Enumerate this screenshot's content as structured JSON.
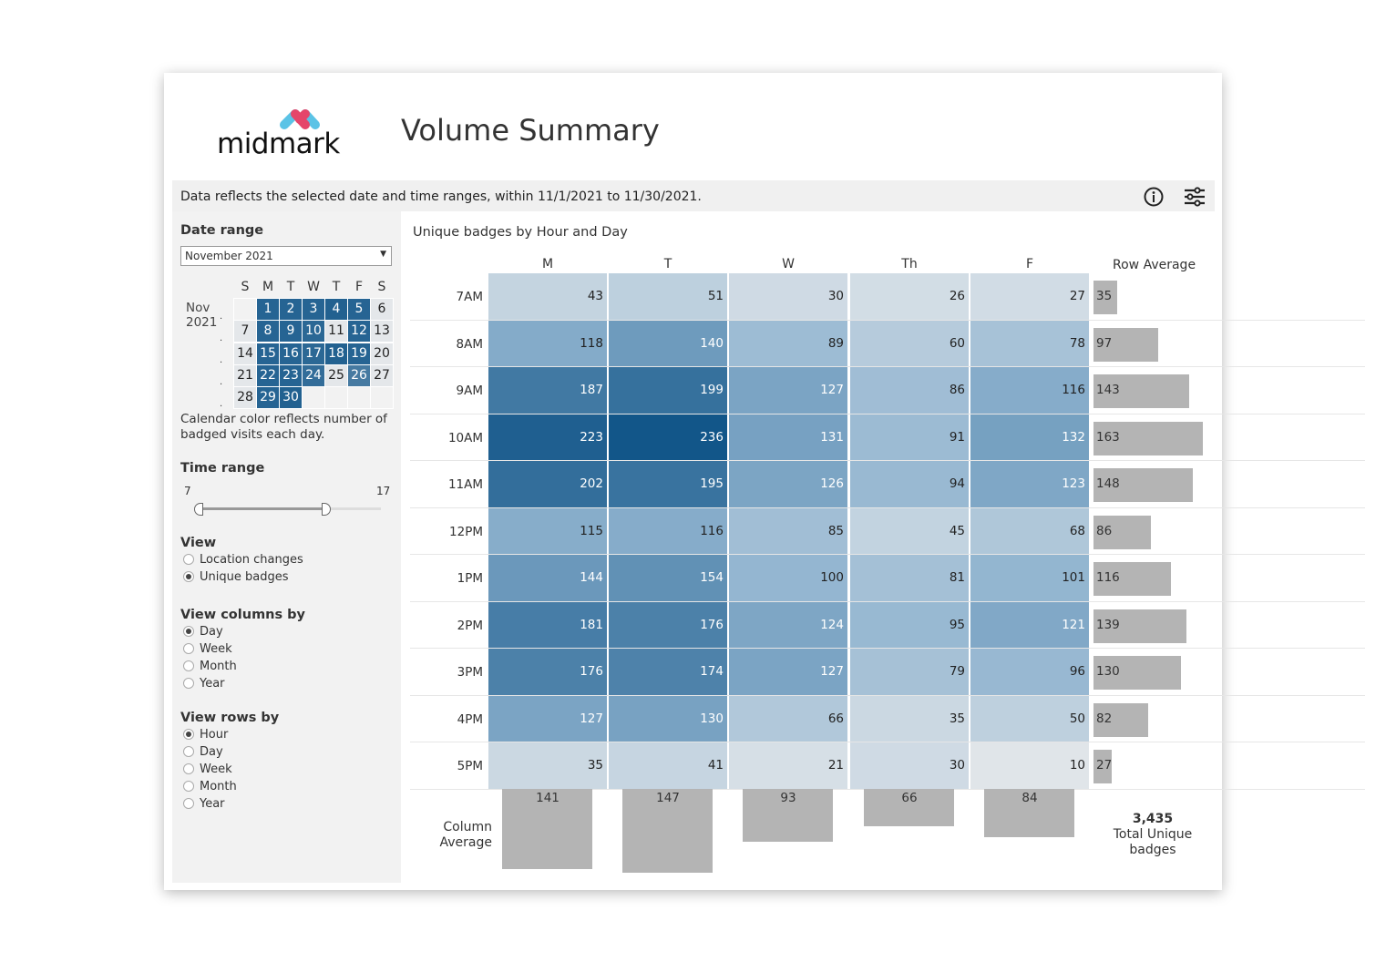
{
  "brand": {
    "logo_text": "midmark"
  },
  "header": {
    "title": "Volume Summary"
  },
  "banner": {
    "text": "Data reflects the selected date and time ranges, within 11/1/2021 to 11/30/2021.",
    "icons": [
      "info-icon",
      "filter-sliders-icon"
    ]
  },
  "sidebar": {
    "date_range": {
      "label": "Date range",
      "selected": "November 2021"
    },
    "calendar": {
      "month": "Nov",
      "year": "2021",
      "weekdays": [
        "S",
        "M",
        "T",
        "W",
        "T",
        "F",
        "S"
      ],
      "weeks": [
        [
          null,
          1,
          2,
          3,
          4,
          5,
          6
        ],
        [
          7,
          8,
          9,
          10,
          11,
          12,
          13
        ],
        [
          14,
          15,
          16,
          17,
          18,
          19,
          20
        ],
        [
          21,
          22,
          23,
          24,
          25,
          26,
          27
        ],
        [
          28,
          29,
          30,
          null,
          null,
          null,
          null
        ]
      ],
      "intensity": [
        [
          null,
          0.9,
          0.9,
          0.9,
          0.95,
          0.9,
          0.1
        ],
        [
          0.1,
          0.9,
          0.9,
          0.85,
          0.15,
          0.9,
          0.15
        ],
        [
          0.1,
          0.9,
          0.9,
          0.85,
          0.95,
          0.9,
          0.1
        ],
        [
          0.1,
          0.9,
          0.9,
          0.75,
          0.1,
          0.55,
          0.1
        ],
        [
          0.1,
          0.9,
          0.95,
          null,
          null,
          null,
          null
        ]
      ],
      "note": "Calendar color reflects number of badged visits each day."
    },
    "time_range": {
      "label": "Time range",
      "min": "7",
      "max": "17",
      "selected": [
        7,
        17
      ]
    },
    "view": {
      "label": "View",
      "options": [
        "Location changes",
        "Unique badges"
      ],
      "selected": 1
    },
    "view_columns": {
      "label": "View columns by",
      "options": [
        "Day",
        "Week",
        "Month",
        "Year"
      ],
      "selected": 0
    },
    "view_rows": {
      "label": "View rows by",
      "options": [
        "Hour",
        "Day",
        "Week",
        "Month",
        "Year"
      ],
      "selected": 0
    }
  },
  "chart_data": {
    "type": "heatmap",
    "title": "Unique badges by Hour and Day",
    "columns": [
      "M",
      "T",
      "W",
      "Th",
      "F"
    ],
    "rows": [
      "7AM",
      "8AM",
      "9AM",
      "10AM",
      "11AM",
      "12PM",
      "1PM",
      "2PM",
      "3PM",
      "4PM",
      "5PM"
    ],
    "values": [
      [
        43,
        51,
        30,
        26,
        27
      ],
      [
        118,
        140,
        89,
        60,
        78
      ],
      [
        187,
        199,
        127,
        86,
        116
      ],
      [
        223,
        236,
        131,
        91,
        132
      ],
      [
        202,
        195,
        126,
        94,
        123
      ],
      [
        115,
        116,
        85,
        45,
        68
      ],
      [
        144,
        154,
        100,
        81,
        101
      ],
      [
        181,
        176,
        124,
        95,
        121
      ],
      [
        176,
        174,
        127,
        79,
        96
      ],
      [
        127,
        130,
        66,
        35,
        50
      ],
      [
        35,
        41,
        21,
        30,
        10
      ]
    ],
    "row_average_label": "Row Average",
    "row_averages": [
      35,
      97,
      143,
      163,
      148,
      86,
      116,
      139,
      130,
      82,
      27
    ],
    "column_average_label": "Column Average",
    "column_averages": [
      141,
      147,
      93,
      66,
      84
    ],
    "total_value": "3,435",
    "total_label": "Total Unique badges",
    "colors": {
      "low": "#e8eaec",
      "high": "#125689",
      "bar": "#b4b4b4"
    }
  }
}
